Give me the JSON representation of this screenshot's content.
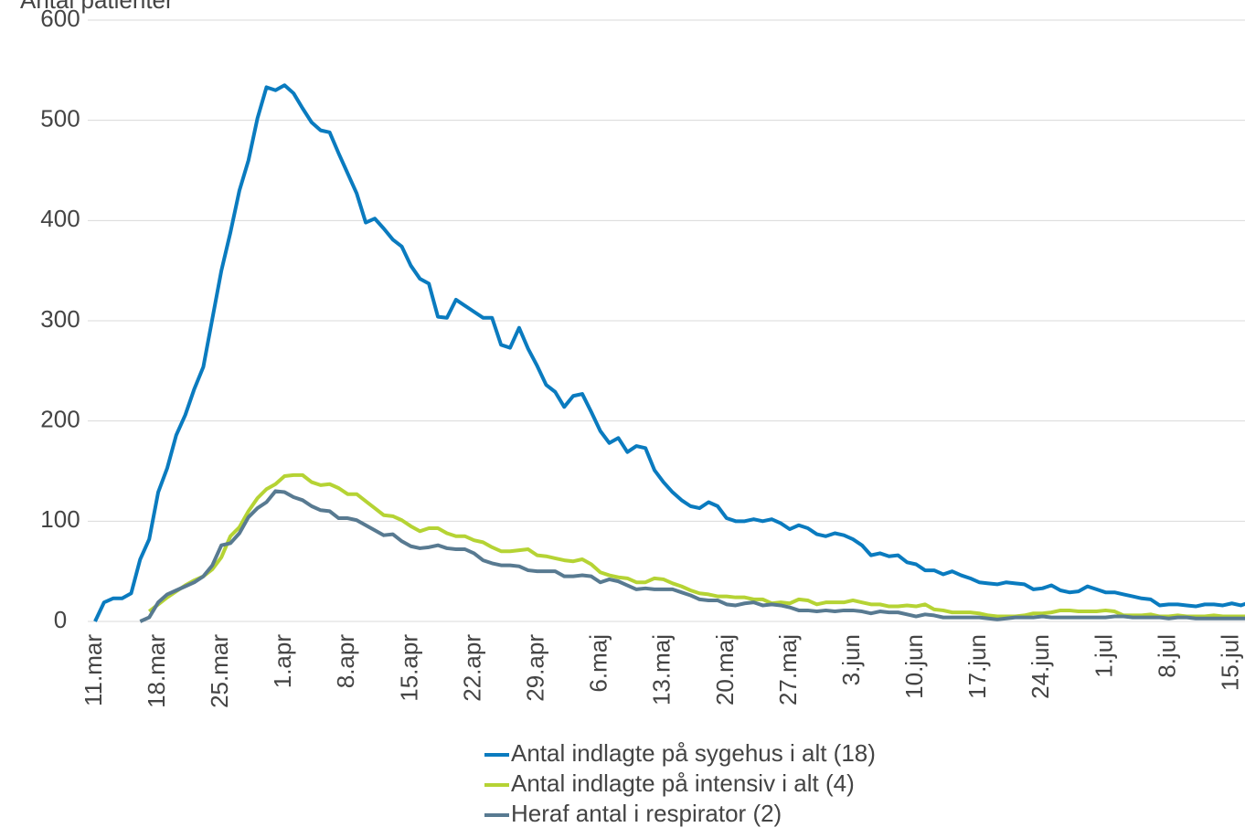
{
  "chart_data": {
    "type": "line",
    "y_label": "Antal patienter",
    "categories": [
      "11.mar",
      null,
      null,
      null,
      null,
      null,
      null,
      "18.mar",
      null,
      null,
      null,
      null,
      null,
      null,
      "25.mar",
      null,
      null,
      null,
      null,
      null,
      null,
      "1.apr",
      null,
      null,
      null,
      null,
      null,
      null,
      "8.apr",
      null,
      null,
      null,
      null,
      null,
      null,
      "15.apr",
      null,
      null,
      null,
      null,
      null,
      null,
      "22.apr",
      null,
      null,
      null,
      null,
      null,
      null,
      "29.apr",
      null,
      null,
      null,
      null,
      null,
      null,
      "6.maj",
      null,
      null,
      null,
      null,
      null,
      null,
      "13.maj",
      null,
      null,
      null,
      null,
      null,
      null,
      "20.maj",
      null,
      null,
      null,
      null,
      null,
      null,
      "27.maj",
      null,
      null,
      null,
      null,
      null,
      null,
      "3.jun",
      null,
      null,
      null,
      null,
      null,
      null,
      "10.jun",
      null,
      null,
      null,
      null,
      null,
      null,
      "17.jun",
      null,
      null,
      null,
      null,
      null,
      null,
      "24.jun",
      null,
      null,
      null,
      null,
      null,
      null,
      "1.jul",
      null,
      null,
      null,
      null,
      null,
      null,
      "8.jul",
      null,
      null,
      null,
      null,
      null,
      null,
      "15.jul",
      null,
      null
    ],
    "series": [
      {
        "name": "Antal indlagte på sygehus i alt (18)",
        "color": "#0a7bbf",
        "values": [
          0,
          19,
          23,
          23,
          28,
          62,
          82,
          129,
          153,
          186,
          206,
          232,
          254,
          302,
          350,
          388,
          430,
          460,
          502,
          533,
          530,
          535,
          527,
          512,
          498,
          490,
          488,
          467,
          447,
          427,
          398,
          402,
          392,
          381,
          374,
          355,
          342,
          337,
          304,
          303,
          321,
          315,
          309,
          303,
          303,
          276,
          273,
          293,
          272,
          255,
          236,
          229,
          214,
          225,
          227,
          209,
          190,
          178,
          183,
          169,
          175,
          173,
          151,
          139,
          129,
          121,
          115,
          113,
          119,
          115,
          103,
          100,
          100,
          102,
          100,
          102,
          98,
          92,
          96,
          93,
          87,
          85,
          88,
          86,
          82,
          76,
          66,
          68,
          65,
          66,
          59,
          57,
          51,
          51,
          47,
          50,
          46,
          43,
          39,
          38,
          37,
          39,
          38,
          37,
          32,
          33,
          36,
          31,
          29,
          30,
          35,
          32,
          29,
          29,
          27,
          25,
          23,
          22,
          16,
          17,
          17,
          16,
          15,
          17,
          17,
          16,
          18,
          16,
          19
        ]
      },
      {
        "name": "Antal indlagte på intensiv i alt (4)",
        "color": "#b5d334",
        "values": [
          null,
          null,
          null,
          null,
          null,
          null,
          10,
          17,
          24,
          30,
          36,
          41,
          45,
          52,
          64,
          85,
          94,
          110,
          123,
          132,
          137,
          145,
          146,
          146,
          139,
          136,
          137,
          133,
          127,
          127,
          120,
          113,
          106,
          105,
          101,
          95,
          90,
          93,
          93,
          88,
          85,
          85,
          81,
          79,
          74,
          70,
          70,
          71,
          72,
          66,
          65,
          63,
          61,
          60,
          62,
          57,
          49,
          46,
          44,
          43,
          39,
          39,
          43,
          42,
          38,
          35,
          31,
          28,
          27,
          25,
          25,
          24,
          24,
          22,
          22,
          18,
          19,
          18,
          22,
          21,
          17,
          19,
          19,
          19,
          21,
          19,
          17,
          17,
          15,
          15,
          16,
          15,
          17,
          12,
          11,
          9,
          9,
          9,
          8,
          6,
          5,
          5,
          5,
          6,
          8,
          8,
          9,
          11,
          11,
          10,
          10,
          10,
          11,
          10,
          6,
          6,
          6,
          7,
          5,
          5,
          6,
          5,
          5,
          5,
          6,
          5,
          5,
          5,
          5
        ]
      },
      {
        "name": "Heraf antal i respirator (2)",
        "color": "#587a91",
        "values": [
          null,
          null,
          null,
          null,
          null,
          0,
          4,
          19,
          27,
          31,
          35,
          39,
          45,
          56,
          76,
          78,
          88,
          104,
          113,
          119,
          130,
          129,
          124,
          121,
          115,
          111,
          110,
          103,
          103,
          101,
          96,
          91,
          86,
          87,
          80,
          75,
          73,
          74,
          76,
          73,
          72,
          72,
          68,
          61,
          58,
          56,
          56,
          55,
          51,
          50,
          50,
          50,
          45,
          45,
          46,
          45,
          39,
          42,
          40,
          36,
          32,
          33,
          32,
          32,
          32,
          29,
          26,
          22,
          21,
          21,
          17,
          16,
          18,
          19,
          16,
          17,
          16,
          14,
          11,
          11,
          10,
          11,
          10,
          11,
          11,
          10,
          8,
          10,
          9,
          9,
          7,
          5,
          7,
          6,
          4,
          4,
          4,
          4,
          4,
          3,
          2,
          3,
          4,
          4,
          4,
          5,
          4,
          4,
          4,
          4,
          4,
          4,
          4,
          5,
          5,
          4,
          4,
          4,
          4,
          3,
          4,
          4,
          3,
          3,
          3,
          3,
          3,
          3,
          3
        ]
      }
    ],
    "ylim": [
      0,
      600
    ],
    "yticks": [
      0,
      100,
      200,
      300,
      400,
      500,
      600
    ],
    "grid": true
  }
}
